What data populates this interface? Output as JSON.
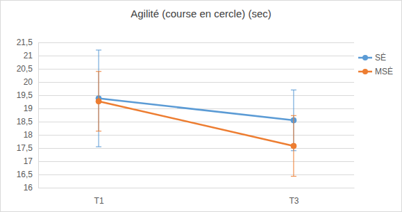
{
  "chart_data": {
    "type": "line",
    "title": "Agilité (course en cercle) (sec)",
    "categories": [
      "T1",
      "T3"
    ],
    "series": [
      {
        "name": "SĖ",
        "color": "#5b9bd5",
        "values": [
          19.38,
          18.55
        ],
        "errors": [
          1.83,
          1.15
        ]
      },
      {
        "name": "MSĖ",
        "color": "#ed7d31",
        "values": [
          19.27,
          17.58
        ],
        "errors": [
          1.13,
          1.15
        ]
      }
    ],
    "ylim": [
      16,
      21.5
    ],
    "yticks": [
      16,
      {
        "value": 16.5,
        "label": "16,5"
      },
      17,
      {
        "value": 17.5,
        "label": "17,5"
      },
      18,
      {
        "value": 18.5,
        "label": "18,5"
      },
      19,
      {
        "value": 19.5,
        "label": "19,5"
      },
      20,
      {
        "value": 20.5,
        "label": "20,5"
      },
      21,
      {
        "value": 21.5,
        "label": "21,5"
      }
    ],
    "grid": true,
    "legend": "right",
    "marker": "circle"
  }
}
